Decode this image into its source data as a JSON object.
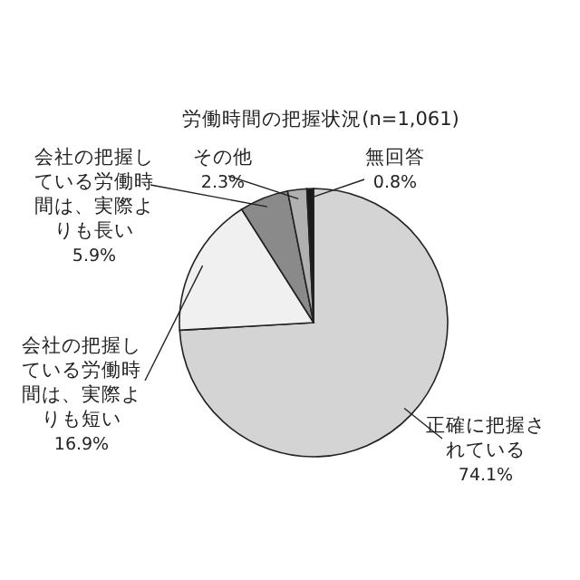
{
  "chart_data": {
    "type": "pie",
    "title": "労働時間の把握状況(n=1,061)",
    "categories": [
      "正確に把握されている",
      "会社の把握している労働時間は、実際よりも短い",
      "会社の把握している労働時間は、実際よりも長い",
      "その他",
      "無回答"
    ],
    "values": [
      74.1,
      16.9,
      5.9,
      2.3,
      0.8
    ],
    "value_labels": [
      "74.1%",
      "16.9%",
      "5.9%",
      "2.3%",
      "0.8%"
    ],
    "colors": [
      "#d4d4d4",
      "#f0f0f0",
      "#8a8a8a",
      "#b0b0b0",
      "#1a1a1a"
    ]
  }
}
